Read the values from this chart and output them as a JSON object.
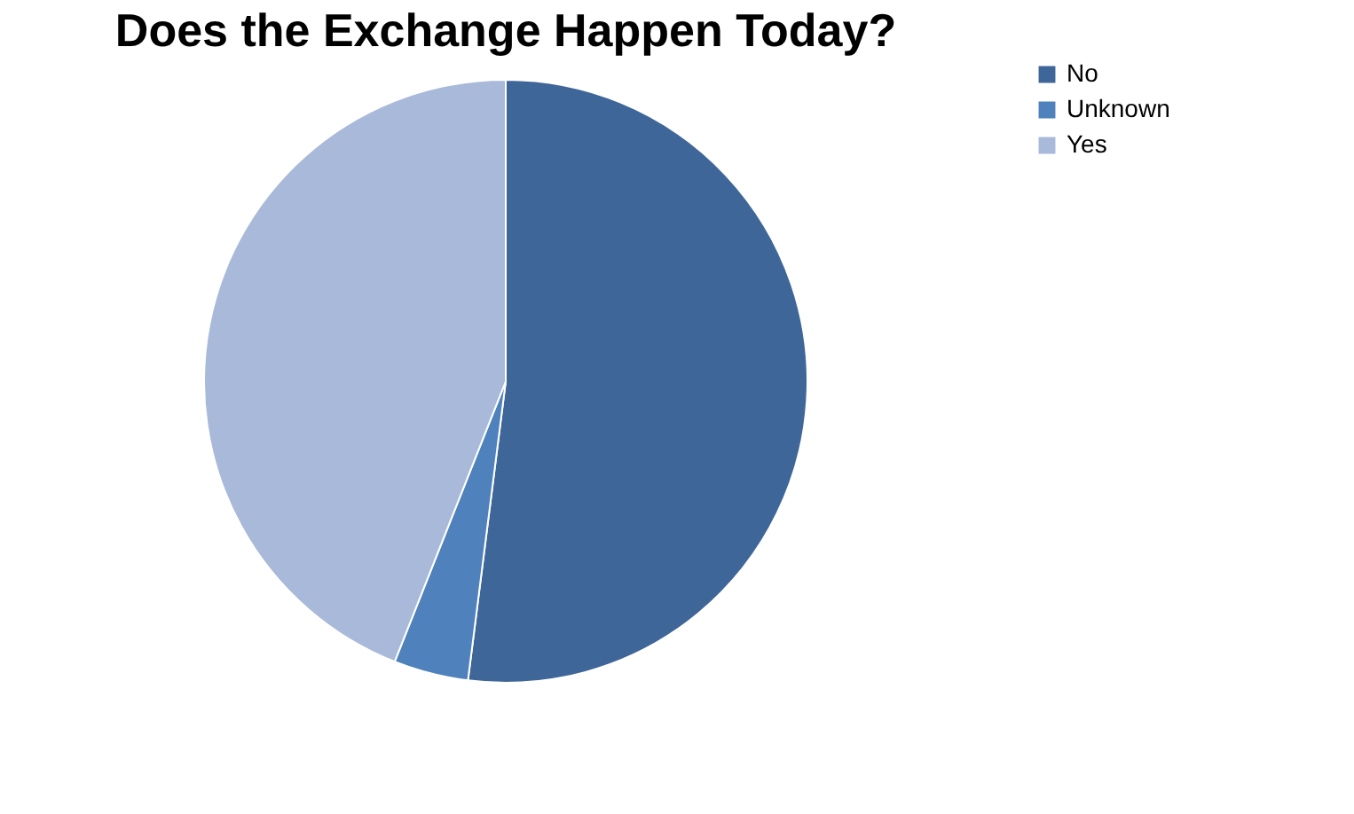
{
  "chart_data": {
    "type": "pie",
    "title": "Does the Exchange Happen Today?",
    "categories": [
      "No",
      "Unknown",
      "Yes"
    ],
    "values": [
      52,
      4,
      44
    ],
    "colors": [
      "#3f6698",
      "#4f81bd",
      "#a9b9d9"
    ],
    "legend": "right"
  }
}
